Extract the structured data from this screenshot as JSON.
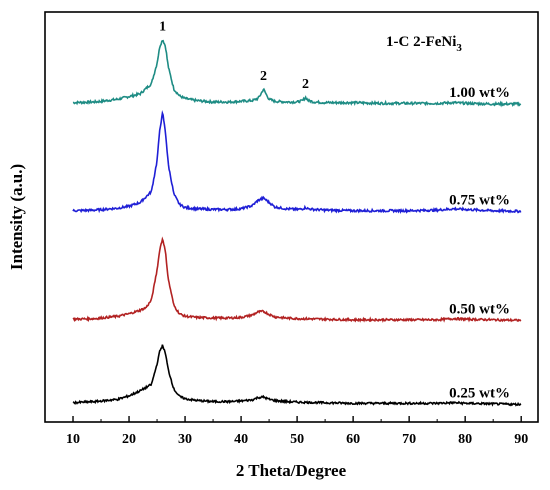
{
  "chart_data": {
    "type": "line",
    "title": "",
    "xlabel": "2 Theta/Degree",
    "ylabel": "Intensity (a.u.)",
    "xlim": [
      5,
      93
    ],
    "x_ticks": [
      10,
      20,
      30,
      40,
      50,
      60,
      70,
      80,
      90
    ],
    "y_ticks_shown": false,
    "grid": false,
    "legend": {
      "position": "top-right",
      "main": "1-C 2-FeNi",
      "subscript": "3"
    },
    "peak_labels": [
      {
        "text": "1",
        "x": 26.0,
        "series": "1.00 wt%"
      },
      {
        "text": "2",
        "x": 44.0,
        "series": "1.00 wt%"
      },
      {
        "text": "2",
        "x": 51.5,
        "series": "1.00 wt%"
      }
    ],
    "series": [
      {
        "name": "1.00 wt%",
        "color": "#1e8c84",
        "x": [
          10,
          14,
          18,
          20,
          22,
          24,
          25,
          25.5,
          26,
          26.5,
          27,
          28,
          29,
          30,
          32,
          35,
          38,
          40,
          42,
          43,
          43.5,
          44,
          44.5,
          45,
          46,
          48,
          50,
          51,
          51.5,
          52,
          53,
          55,
          60,
          65,
          70,
          75,
          78,
          80,
          85,
          90
        ],
        "y": [
          0.02,
          0.03,
          0.07,
          0.11,
          0.15,
          0.3,
          0.6,
          0.85,
          0.95,
          0.85,
          0.55,
          0.22,
          0.12,
          0.08,
          0.05,
          0.03,
          0.03,
          0.04,
          0.05,
          0.08,
          0.14,
          0.22,
          0.14,
          0.07,
          0.04,
          0.03,
          0.03,
          0.05,
          0.1,
          0.05,
          0.03,
          0.02,
          0.02,
          0.01,
          0.01,
          0.01,
          0.02,
          0.01,
          0.0,
          0.0
        ]
      },
      {
        "name": "0.75 wt%",
        "color": "#1f1fd6",
        "x": [
          10,
          14,
          18,
          20,
          22,
          24,
          25,
          25.5,
          26,
          26.5,
          27,
          28,
          29,
          30,
          32,
          35,
          38,
          40,
          42,
          43,
          44,
          45,
          46,
          48,
          50,
          51,
          51.5,
          52,
          53,
          55,
          60,
          65,
          70,
          75,
          78,
          80,
          85,
          90
        ],
        "y": [
          0.02,
          0.03,
          0.06,
          0.09,
          0.15,
          0.32,
          0.8,
          1.3,
          1.55,
          1.25,
          0.75,
          0.28,
          0.12,
          0.07,
          0.05,
          0.04,
          0.04,
          0.05,
          0.1,
          0.18,
          0.22,
          0.15,
          0.08,
          0.05,
          0.04,
          0.05,
          0.07,
          0.05,
          0.04,
          0.03,
          0.02,
          0.02,
          0.02,
          0.03,
          0.05,
          0.04,
          0.02,
          0.01
        ]
      },
      {
        "name": "0.50 wt%",
        "color": "#b22222",
        "x": [
          10,
          14,
          18,
          20,
          22,
          23,
          24,
          25,
          25.5,
          26,
          26.5,
          27,
          28,
          29,
          30,
          32,
          35,
          38,
          40,
          42,
          43,
          44,
          45,
          46,
          48,
          50,
          55,
          60,
          65,
          70,
          75,
          78,
          80,
          85,
          90
        ],
        "y": [
          0.03,
          0.04,
          0.08,
          0.12,
          0.18,
          0.22,
          0.35,
          0.85,
          1.2,
          1.38,
          1.15,
          0.7,
          0.26,
          0.12,
          0.08,
          0.06,
          0.05,
          0.05,
          0.06,
          0.1,
          0.15,
          0.16,
          0.11,
          0.07,
          0.05,
          0.04,
          0.03,
          0.02,
          0.02,
          0.02,
          0.02,
          0.04,
          0.03,
          0.02,
          0.01
        ]
      },
      {
        "name": "0.25 wt%",
        "color": "#000000",
        "x": [
          10,
          14,
          18,
          20,
          22,
          24,
          25,
          25.5,
          26,
          26.5,
          27,
          28,
          29,
          30,
          32,
          35,
          38,
          40,
          42,
          43,
          44,
          45,
          46,
          48,
          50,
          55,
          60,
          65,
          70,
          75,
          78,
          80,
          85,
          90
        ],
        "y": [
          0.04,
          0.06,
          0.1,
          0.16,
          0.25,
          0.36,
          0.72,
          0.95,
          1.05,
          0.9,
          0.62,
          0.28,
          0.15,
          0.11,
          0.08,
          0.06,
          0.06,
          0.07,
          0.09,
          0.13,
          0.14,
          0.1,
          0.08,
          0.06,
          0.05,
          0.04,
          0.03,
          0.03,
          0.03,
          0.03,
          0.04,
          0.03,
          0.02,
          0.01
        ]
      }
    ]
  }
}
